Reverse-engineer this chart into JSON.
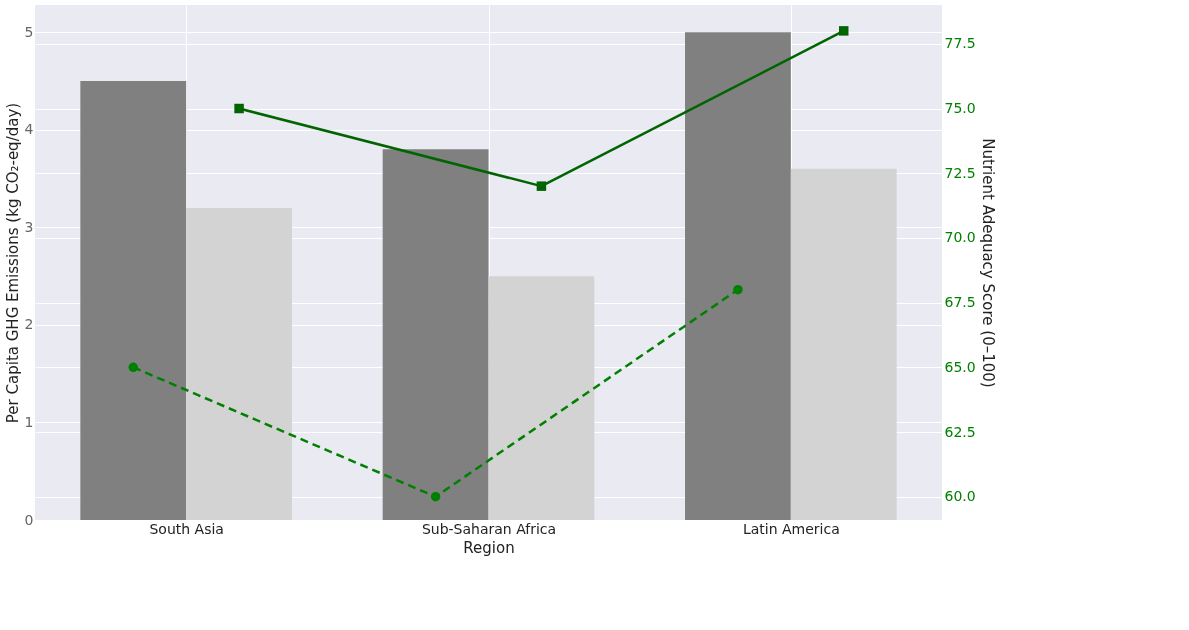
{
  "chart_data": {
    "type": "bar",
    "xlabel": "Region",
    "ylabel": "Per Capita GHG Emissions (kg CO₂-eq/day)",
    "y2label": "Nutrient Adequacy Score (0–100)",
    "categories": [
      "South Asia",
      "Sub-Saharan Africa",
      "Latin America"
    ],
    "series": [
      {
        "color": "#808080",
        "values": [
          4.5,
          3.8,
          5.0
        ]
      },
      {
        "color": "#d3d3d3",
        "values": [
          3.2,
          2.5,
          3.6
        ]
      },
      {
        "type": "line",
        "axis": "y2",
        "color": "#008000",
        "marker": "circle",
        "line_style": "dashed",
        "values": [
          65,
          60,
          68
        ]
      },
      {
        "type": "line",
        "axis": "y2",
        "color": "#006400",
        "marker": "square",
        "line_style": "solid",
        "values": [
          75,
          72,
          78
        ]
      }
    ],
    "ylim": [
      0,
      5.28
    ],
    "yticks": [
      0,
      1,
      2,
      3,
      4,
      5
    ],
    "y2lim": [
      59.1,
      79
    ],
    "y2ticks": [
      {
        "value": 60,
        "label": "60.0"
      },
      {
        "value": 62.5,
        "label": "62.5"
      },
      {
        "value": 65,
        "label": "65.0"
      },
      {
        "value": 67.5,
        "label": "67.5"
      },
      {
        "value": 70,
        "label": "70.0"
      },
      {
        "value": 72.5,
        "label": "72.5"
      },
      {
        "value": 75,
        "label": "75.0"
      },
      {
        "value": 77.5,
        "label": "77.5"
      }
    ],
    "grid": true
  }
}
